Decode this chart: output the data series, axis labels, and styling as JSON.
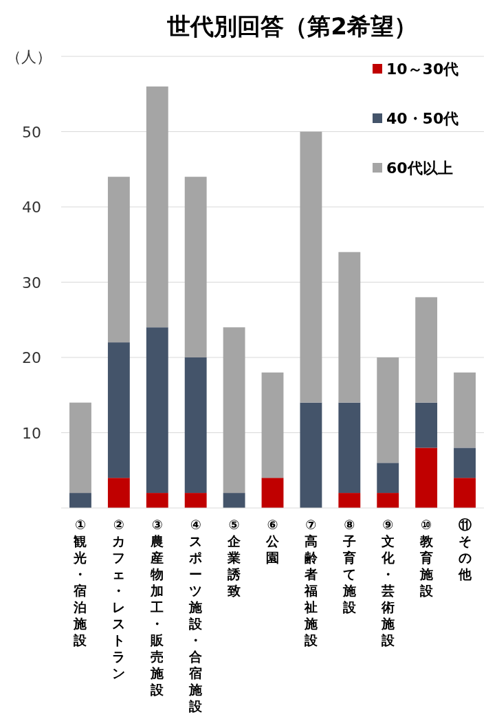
{
  "chart_data": {
    "type": "bar",
    "stacked": true,
    "title": "世代別回答（第2希望）",
    "ylabel": "（人）",
    "categories": [
      "①観光・宿泊施設",
      "②カフェ・レストラン",
      "③農産物加工・販売施設",
      "④スポーツ施設・合宿施設",
      "⑤企業誘致",
      "⑥公園",
      "⑦高齢者福祉施設",
      "⑧子育て施設",
      "⑨文化・芸術施設",
      "⑩教育施設",
      "⑪その他"
    ],
    "series": [
      {
        "name": "10～30代",
        "color": "#c00000",
        "values": [
          0,
          4,
          2,
          2,
          0,
          4,
          0,
          2,
          2,
          8,
          4
        ]
      },
      {
        "name": "40・50代",
        "color": "#44546a",
        "values": [
          2,
          18,
          22,
          18,
          2,
          0,
          14,
          12,
          4,
          6,
          4
        ]
      },
      {
        "name": "60代以上",
        "color": "#a5a5a5",
        "values": [
          12,
          22,
          32,
          24,
          22,
          14,
          36,
          20,
          14,
          14,
          10
        ]
      }
    ],
    "ylim": [
      0,
      60
    ],
    "yticks": [
      {
        "value": 0,
        "label": null
      },
      10,
      20,
      30,
      40,
      50,
      {
        "value": 60,
        "label": null
      }
    ],
    "grid": "y",
    "legend": "top right"
  }
}
